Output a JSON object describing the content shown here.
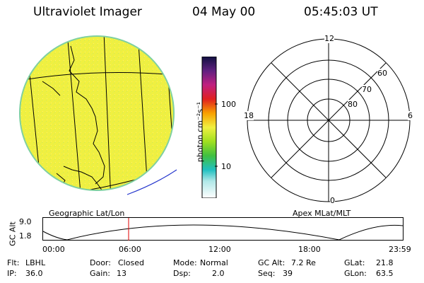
{
  "header": {
    "instrument": "Ultraviolet Imager",
    "date": "04 May 00",
    "time": "05:45:03 UT"
  },
  "colorbar": {
    "unit_label": "photon cm⁻²s⁻¹",
    "ticks": [
      "100",
      "10"
    ]
  },
  "left_panel": {
    "label": "Geographic Lat/Lon"
  },
  "right_panel": {
    "label": "Apex MLat/MLT",
    "mlt_labels": {
      "top": "12",
      "left": "18",
      "right": "6",
      "bottom": "0"
    },
    "lat_labels": [
      "60",
      "70",
      "80"
    ]
  },
  "orbit_plot": {
    "ylabel": "GC Alt",
    "yticks": [
      "9.0",
      "1.8"
    ],
    "xticks": [
      "00:00",
      "06:00",
      "12:00",
      "18:00",
      "23:59"
    ],
    "marker_color": "#e00000"
  },
  "status": {
    "row1": [
      {
        "label": "Flt:",
        "value": "LBHL"
      },
      {
        "label": "Door:",
        "value": "Closed"
      },
      {
        "label": "Mode:",
        "value": "Normal"
      },
      {
        "label": "GC Alt:",
        "value": "7.2 Re"
      },
      {
        "label": "GLat:",
        "value": "21.8"
      }
    ],
    "row2": [
      {
        "label": "IP:",
        "value": "36.0"
      },
      {
        "label": "Gain:",
        "value": "13"
      },
      {
        "label": "Dsp:",
        "value": "2.0"
      },
      {
        "label": "Seq:",
        "value": "39"
      },
      {
        "label": "GLon:",
        "value": "63.5"
      }
    ]
  }
}
